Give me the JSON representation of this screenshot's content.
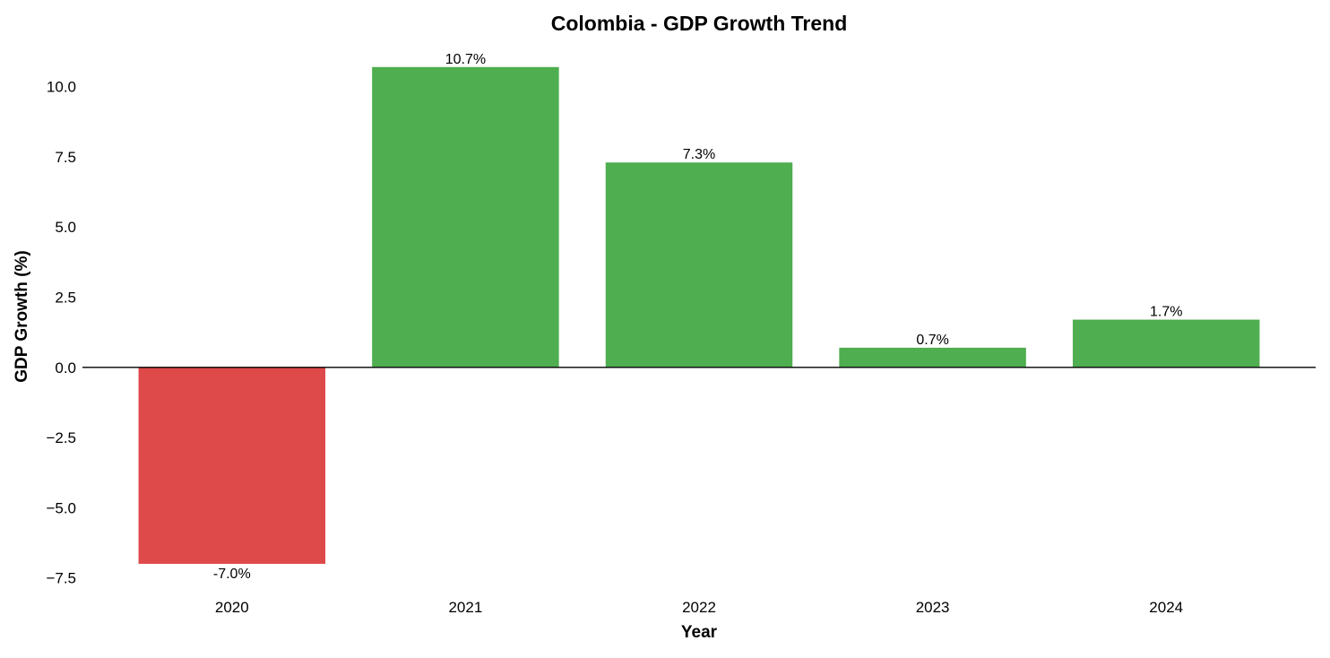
{
  "chart_data": {
    "type": "bar",
    "title": "Colombia - GDP Growth Trend",
    "xlabel": "Year",
    "ylabel": "GDP Growth (%)",
    "categories": [
      "2020",
      "2021",
      "2022",
      "2023",
      "2024"
    ],
    "values": [
      -7.0,
      10.7,
      7.3,
      0.7,
      1.7
    ],
    "data_labels": [
      "-7.0%",
      "10.7%",
      "7.3%",
      "0.7%",
      "1.7%"
    ],
    "ylim": [
      -7.8,
      11.3
    ],
    "yticks": [
      -7.5,
      -5.0,
      -2.5,
      0.0,
      2.5,
      5.0,
      7.5,
      10.0
    ],
    "ytick_labels": [
      "−7.5",
      "−5.0",
      "−2.5",
      "0.0",
      "2.5",
      "5.0",
      "7.5",
      "10.0"
    ],
    "grid": false,
    "zero_line": true,
    "colors": {
      "positive": "#4FAE4F",
      "negative": "#DE4A4A"
    }
  }
}
